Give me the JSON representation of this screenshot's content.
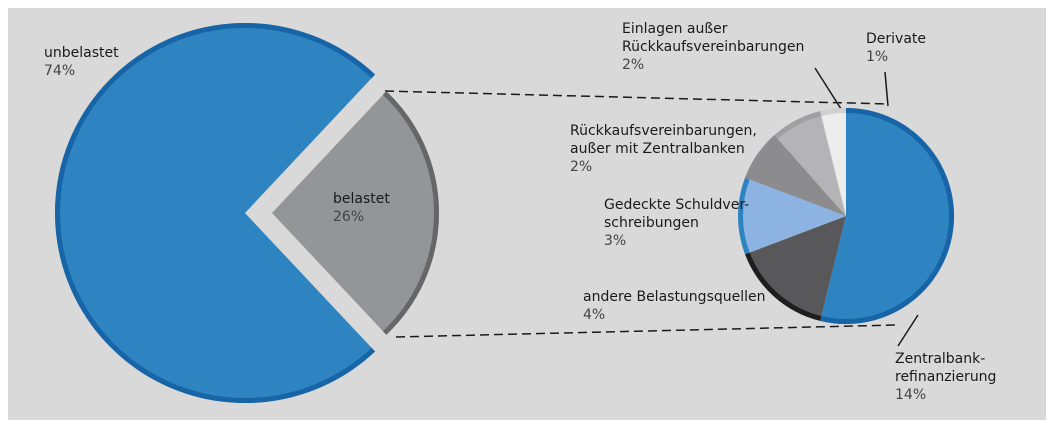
{
  "chart_data": [
    {
      "type": "pie",
      "categories": [
        "unbelastet",
        "belastet"
      ],
      "values": [
        74,
        26
      ],
      "value_labels": [
        "74%",
        "26%"
      ],
      "colors": [
        "#2e84c0",
        "#939598"
      ],
      "border_colors": [
        "#1764a6",
        "#666668"
      ]
    },
    {
      "type": "pie",
      "categories": [
        "Zentralbank-\nrefinanzierung",
        "andere Belastungsquellen",
        "Gedeckte Schuldver-\nschreibungen",
        "Rückkaufsvereinbarungen,\naußer mit Zentralbanken",
        "Einlagen außer\nRückkaufsvereinbarungen",
        "Derivate"
      ],
      "values": [
        14,
        4,
        3,
        2,
        2,
        1
      ],
      "value_labels": [
        "14%",
        "4%",
        "3%",
        "2%",
        "2%",
        "1%"
      ],
      "colors": [
        "#2e84c0",
        "#58585a",
        "#8db3e2",
        "#8c8c8e",
        "#b4b4b6",
        "#ececec"
      ],
      "border_colors": [
        "#1764a6",
        "#1e1e1e",
        "#2e84c0",
        "#8c8c8e",
        "#a0a0a2",
        "#d0d0d0"
      ]
    }
  ]
}
